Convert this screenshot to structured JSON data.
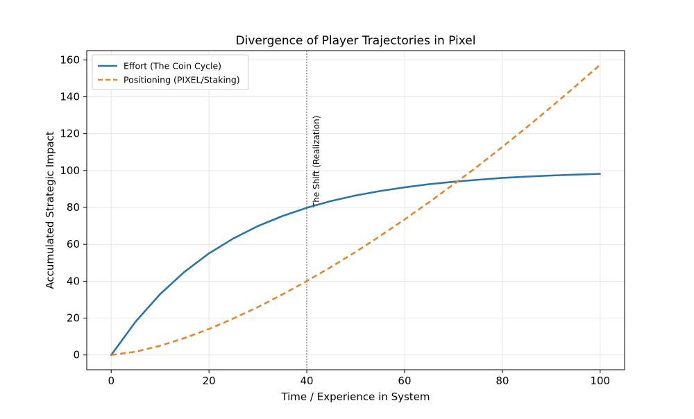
{
  "chart_data": {
    "type": "line",
    "title": "Divergence of Player Trajectories in Pixel",
    "xlabel": "Time / Experience in System",
    "ylabel": "Accumulated Strategic Impact",
    "xlim": [
      -5,
      105
    ],
    "ylim": [
      -8,
      165
    ],
    "xticks": [
      0,
      20,
      40,
      60,
      80,
      100
    ],
    "yticks": [
      0,
      20,
      40,
      60,
      80,
      100,
      120,
      140,
      160
    ],
    "xtick_labels": [
      "0",
      "20",
      "40",
      "60",
      "80",
      "100"
    ],
    "ytick_labels": [
      "0",
      "20",
      "40",
      "60",
      "80",
      "100",
      "120",
      "140",
      "160"
    ],
    "grid": true,
    "legend_position": "top-left",
    "x": [
      0,
      5,
      10,
      15,
      20,
      25,
      30,
      35,
      40,
      45,
      50,
      55,
      60,
      65,
      70,
      75,
      80,
      85,
      90,
      95,
      100
    ],
    "series": [
      {
        "name": "Effort (The Coin Cycle)",
        "color": "#2b74a8",
        "style": "solid",
        "values": [
          0,
          18.1,
          33.0,
          45.1,
          55.1,
          63.2,
          69.9,
          75.3,
          79.8,
          83.5,
          86.5,
          88.9,
          90.9,
          92.6,
          93.9,
          95.0,
          96.0,
          96.7,
          97.3,
          97.8,
          98.2
        ]
      },
      {
        "name": "Positioning (PIXEL/Staking)",
        "color": "#e4862e",
        "style": "dashed",
        "values": [
          0,
          1.8,
          5.0,
          9.2,
          14.1,
          19.8,
          26.0,
          32.8,
          40.1,
          47.8,
          55.9,
          64.5,
          73.5,
          82.8,
          92.5,
          102.4,
          112.8,
          123.5,
          134.5,
          145.8,
          157.4
        ]
      }
    ],
    "annotations": [
      {
        "type": "vline",
        "x": 40,
        "color": "#888888",
        "style": "dotted",
        "label": "The Shift (Realization)"
      }
    ]
  }
}
